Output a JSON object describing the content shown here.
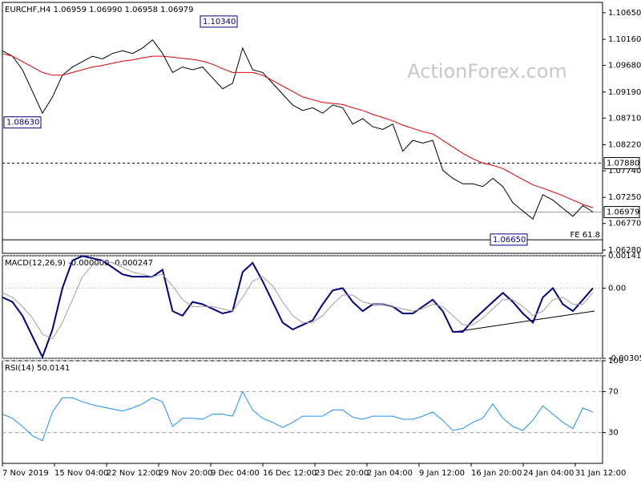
{
  "watermark": "ActionForex.com",
  "chart_data": [
    {
      "type": "line",
      "title": "EURCHF,H4 1.06959 1.06990 1.06958 1.06979",
      "ylim": [
        1.0622,
        1.1084
      ],
      "yticks": [
        {
          "value": 1.1065,
          "label": "1.10650"
        },
        {
          "value": 1.1016,
          "label": "1.10160"
        },
        {
          "value": 1.0968,
          "label": "1.09680"
        },
        {
          "value": 1.0919,
          "label": "1.09190"
        },
        {
          "value": 1.0871,
          "label": "1.08710"
        },
        {
          "value": 1.0822,
          "label": "1.08220"
        },
        {
          "value": 1.0774,
          "label": "1.07740"
        },
        {
          "value": 1.0725,
          "label": "1.07250"
        },
        {
          "value": 1.0677,
          "label": "1.06770"
        },
        {
          "value": 1.0628,
          "label": "1.06280"
        }
      ],
      "series": [
        {
          "color": "#000000",
          "values": [
            1.0995,
            1.0985,
            1.096,
            1.092,
            1.088,
            1.091,
            1.095,
            1.0965,
            1.0975,
            1.0985,
            1.098,
            1.099,
            1.0995,
            1.099,
            1.1,
            1.1015,
            1.099,
            1.0955,
            1.0965,
            1.096,
            1.0965,
            1.0945,
            1.0925,
            1.0935,
            1.1,
            1.096,
            1.0955,
            1.0935,
            1.0915,
            1.0895,
            1.0885,
            1.089,
            1.088,
            1.0895,
            1.089,
            1.086,
            1.087,
            1.0855,
            1.085,
            1.086,
            1.081,
            1.083,
            1.0825,
            1.083,
            1.0775,
            1.076,
            1.075,
            1.075,
            1.0745,
            1.076,
            1.0745,
            1.0715,
            1.07,
            1.0685,
            1.073,
            1.072,
            1.0705,
            1.069,
            1.071,
            1.0698
          ]
        },
        {
          "color": "#e00000",
          "values": [
            1.099,
            1.0985,
            1.0975,
            1.0965,
            1.0955,
            1.095,
            1.095,
            1.0955,
            1.096,
            1.0965,
            1.0968,
            1.0972,
            1.0976,
            1.0978,
            1.0982,
            1.0985,
            1.0985,
            1.0983,
            1.0981,
            1.0979,
            1.0976,
            1.097,
            1.0962,
            1.0955,
            1.0955,
            1.0955,
            1.095,
            1.094,
            1.093,
            1.092,
            1.091,
            1.0905,
            1.09,
            1.0898,
            1.0896,
            1.089,
            1.0885,
            1.0878,
            1.0872,
            1.0866,
            1.0858,
            1.0852,
            1.0846,
            1.0842,
            1.083,
            1.0818,
            1.0806,
            1.0796,
            1.0788,
            1.0784,
            1.0778,
            1.0768,
            1.0758,
            1.0748,
            1.0742,
            1.0735,
            1.0728,
            1.072,
            1.0712,
            1.0706
          ]
        }
      ],
      "annotations": [
        {
          "text": "1.10340",
          "value": 1.1034
        },
        {
          "text": "1.08630",
          "value": 1.0863
        },
        {
          "text": "1.06650",
          "value": 1.0665
        }
      ],
      "levels": [
        {
          "value": 1.0788,
          "label": "1.07880",
          "style": "dashed"
        },
        {
          "value": 1.06979,
          "label": "1.06979",
          "style": "current"
        },
        {
          "value": 1.0647,
          "label": "FE 61.8",
          "style": "solid"
        }
      ]
    },
    {
      "type": "line",
      "title": "MACD(12,26,9) -0.000000 -0.000247",
      "ylim": [
        -0.003055,
        0.001411
      ],
      "yticks": [
        0.001411,
        {
          "value": 0,
          "label": "0.00"
        },
        -0.003055
      ],
      "series": [
        {
          "color": "#000080",
          "values": [
            -0.0004,
            -0.0006,
            -0.0012,
            -0.0021,
            -0.003,
            -0.0018,
            0.0,
            0.0012,
            0.0014,
            0.0013,
            0.0012,
            0.0009,
            0.0006,
            0.0005,
            0.0005,
            0.0005,
            0.0008,
            -0.001,
            -0.0012,
            -0.0006,
            -0.0007,
            -0.0009,
            -0.0011,
            -0.001,
            0.0007,
            0.0011,
            0.0003,
            -0.0006,
            -0.0015,
            -0.0018,
            -0.0016,
            -0.0014,
            -0.0007,
            -0.0001,
            0.0,
            -0.0006,
            -0.001,
            -0.0007,
            -0.0007,
            -0.0008,
            -0.0011,
            -0.0011,
            -0.0008,
            -0.0005,
            -0.001,
            -0.0019,
            -0.0019,
            -0.0014,
            -0.001,
            -0.0006,
            -0.0002,
            -0.0006,
            -0.0011,
            -0.0015,
            -0.0004,
            0.0,
            -0.0007,
            -0.001,
            -0.0005,
            0.0
          ]
        },
        {
          "color": "#a0a0a0",
          "values": [
            -0.0002,
            -0.0004,
            -0.0008,
            -0.0013,
            -0.002,
            -0.0022,
            -0.0015,
            -0.0005,
            0.0005,
            0.001,
            0.0012,
            0.0011,
            0.0009,
            0.0007,
            0.0006,
            0.0005,
            0.0006,
            0.0001,
            -0.0005,
            -0.0008,
            -0.0008,
            -0.0008,
            -0.0009,
            -0.001,
            -0.0004,
            0.0003,
            0.0005,
            0.0001,
            -0.0006,
            -0.0012,
            -0.0015,
            -0.0015,
            -0.0012,
            -0.0007,
            -0.0003,
            -0.0003,
            -0.0006,
            -0.0007,
            -0.0007,
            -0.0008,
            -0.0009,
            -0.001,
            -0.0009,
            -0.0007,
            -0.0008,
            -0.0012,
            -0.0016,
            -0.0016,
            -0.0013,
            -0.0009,
            -0.0005,
            -0.0005,
            -0.0008,
            -0.0012,
            -0.001,
            -0.0005,
            -0.0004,
            -0.0007,
            -0.0007,
            -0.0002
          ]
        }
      ]
    },
    {
      "type": "line",
      "title": "RSI(14) 50.0141",
      "ylim": [
        0,
        100
      ],
      "yticks": [
        100,
        70,
        30
      ],
      "series": [
        {
          "color": "#1e90ff",
          "values": [
            48,
            44,
            36,
            27,
            22,
            50,
            64,
            64,
            60,
            57,
            55,
            53,
            51,
            54,
            58,
            64,
            60,
            36,
            44,
            44,
            43,
            48,
            48,
            46,
            70,
            52,
            44,
            40,
            35,
            40,
            46,
            46,
            46,
            52,
            52,
            45,
            43,
            46,
            46,
            46,
            43,
            43,
            46,
            50,
            42,
            32,
            34,
            40,
            44,
            58,
            44,
            36,
            32,
            42,
            56,
            48,
            40,
            34,
            54,
            50
          ]
        }
      ],
      "xtick_labels": [
        "7 Nov 2019",
        "15 Nov 04:00",
        "22 Nov 12:00",
        "29 Nov 20:00",
        "9 Dec 04:00",
        "16 Dec 12:00",
        "23 Dec 20:00",
        "2 Jan 04:00",
        "9 Jan 12:00",
        "16 Jan 20:00",
        "24 Jan 04:00",
        "31 Jan 12:00"
      ]
    }
  ]
}
